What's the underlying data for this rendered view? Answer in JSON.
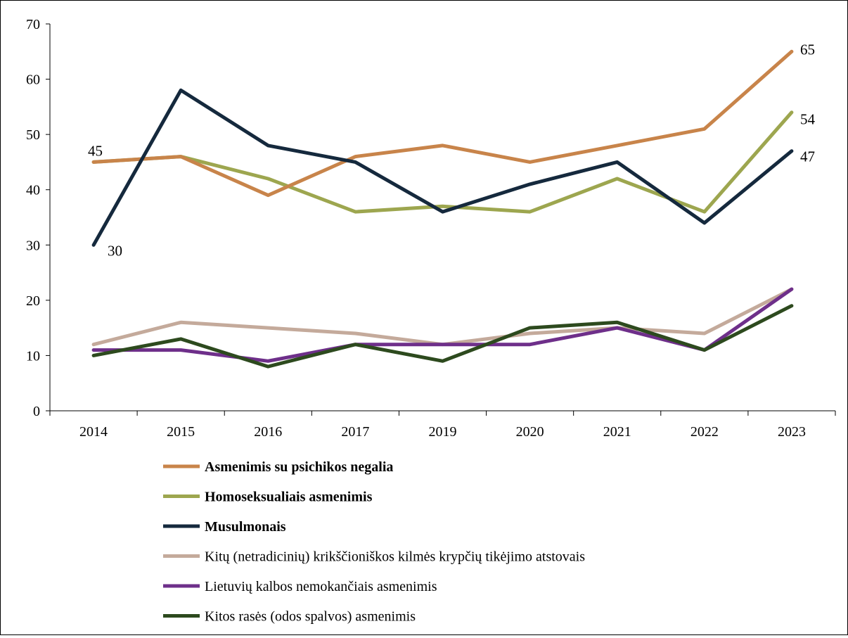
{
  "chart_data": {
    "type": "line",
    "title": "",
    "xlabel": "",
    "ylabel": "",
    "categories": [
      "2014",
      "2015",
      "2016",
      "2017",
      "2019",
      "2020",
      "2021",
      "2022",
      "2023"
    ],
    "ylim": [
      0,
      70
    ],
    "yticks": [
      "0",
      "10",
      "20",
      "30",
      "40",
      "50",
      "60",
      "70"
    ],
    "grid": false,
    "legend_position": "bottom",
    "series": [
      {
        "name": "Asmenimis su psichikos negalia",
        "color": "#C8844A",
        "bold": true,
        "values": [
          45,
          46,
          39,
          46,
          48,
          45,
          48,
          51,
          65
        ]
      },
      {
        "name": "Homoseksualiais asmenimis",
        "color": "#9DA64F",
        "bold": true,
        "values": [
          45,
          46,
          42,
          36,
          37,
          36,
          42,
          36,
          54
        ]
      },
      {
        "name": "Musulmonais",
        "color": "#15293D",
        "bold": true,
        "values": [
          30,
          58,
          48,
          45,
          36,
          41,
          45,
          34,
          47
        ]
      },
      {
        "name": "Kitų (netradicinių) krikščioniškos kilmės krypčių tikėjimo atstovais",
        "color": "#C4AA9B",
        "bold": false,
        "values": [
          12,
          16,
          15,
          14,
          12,
          14,
          15,
          14,
          22
        ]
      },
      {
        "name": "Lietuvių kalbos nemokančiais asmenimis",
        "color": "#6E2F8A",
        "bold": false,
        "values": [
          11,
          11,
          9,
          12,
          12,
          12,
          15,
          11,
          22
        ]
      },
      {
        "name": "Kitos rasės (odos spalvos) asmenimis",
        "color": "#2D4A1E",
        "bold": false,
        "values": [
          10,
          13,
          8,
          12,
          9,
          15,
          16,
          11,
          19
        ]
      }
    ],
    "data_labels": [
      {
        "series": 0,
        "index": 8,
        "text": "65"
      },
      {
        "series": 1,
        "index": 0,
        "text": "45"
      },
      {
        "series": 1,
        "index": 8,
        "text": "54"
      },
      {
        "series": 2,
        "index": 0,
        "text": "30"
      },
      {
        "series": 2,
        "index": 8,
        "text": "47"
      }
    ]
  }
}
